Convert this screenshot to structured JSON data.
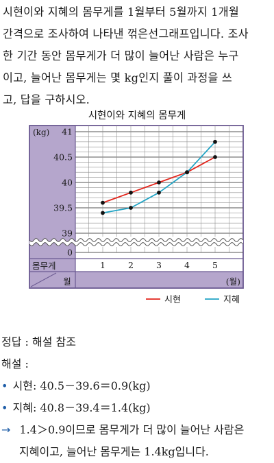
{
  "problem": {
    "lines": [
      "시현이와 지혜의 몸무게를 1월부터 5월까지 1개월",
      "간격으로 조사하여 나타낸 꺾은선그래프입니다. 조사",
      "한 기간 동안 몸무게가 더 많이 늘어난 사람은 누구",
      "이고, 늘어난 몸무게는 몇 kg인지 풀이 과정을 쓰",
      "고, 답을 구하시오."
    ]
  },
  "chart_data": {
    "type": "line",
    "title": "시현이와 지혜의 몸무게",
    "unit_label": "(kg)",
    "x": [
      1,
      2,
      3,
      4,
      5
    ],
    "x_tick_labels": [
      "1",
      "2",
      "3",
      "4",
      "5"
    ],
    "y_tick_labels": [
      "41",
      "40.5",
      "40",
      "39.5",
      "39",
      "0"
    ],
    "ylim": [
      39,
      41
    ],
    "y_axis_break": true,
    "row_header": "몸무게",
    "corner_label": "월",
    "x_unit_label": "(월)",
    "series": [
      {
        "name": "시현",
        "values": [
          39.6,
          39.8,
          40.0,
          40.2,
          40.5
        ],
        "color": "#e2231a"
      },
      {
        "name": "지혜",
        "values": [
          39.4,
          39.5,
          39.8,
          40.2,
          40.8
        ],
        "color": "#1fa3c4"
      }
    ],
    "colors": {
      "panel": "#b5a6cc",
      "border": "#6b5a92",
      "grid": "#8f8f8f"
    }
  },
  "answer": {
    "line1": "정답 : 해설 참조",
    "line2": "해설 :",
    "bullet": "•",
    "calc1": "시현: 40.5－39.6＝0.9(kg)",
    "calc2": "지혜: 40.8－39.4＝1.4(kg)",
    "arrow": "→",
    "conclusion1": "1.4＞0.9이므로 몸무게가 더 많이 늘어난 사람은",
    "conclusion2": "지혜이고, 늘어난 몸무게는 1.4kg입니다."
  }
}
